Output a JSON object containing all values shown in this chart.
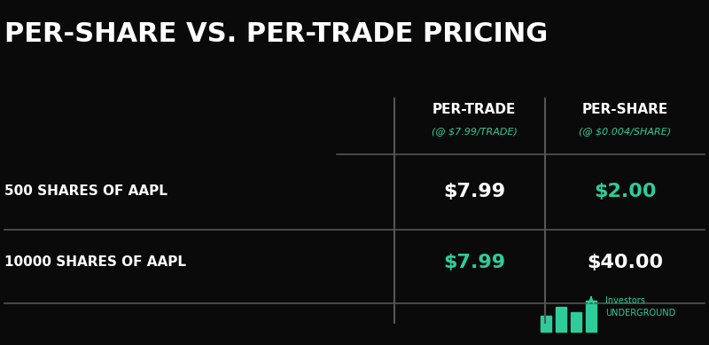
{
  "title": "PER-SHARE VS. PER-TRADE PRICING",
  "background_color": "#0a0a0a",
  "white_color": "#ffffff",
  "green_color": "#2ecc9a",
  "gray_line_color": "#555555",
  "header_col1": "PER-TRADE",
  "header_col1_sub": "(@ $7.99/TRADE)",
  "header_col2": "PER-SHARE",
  "header_col2_sub": "(@ $0.004/SHARE)",
  "rows": [
    {
      "label": "500 SHARES OF AAPL",
      "col1": "$7.99",
      "col1_green": false,
      "col2": "$2.00",
      "col2_green": true
    },
    {
      "label": "10000 SHARES OF AAPL",
      "col1": "$7.99",
      "col1_green": true,
      "col2": "$40.00",
      "col2_green": false
    }
  ],
  "logo_text": "Investors\nUNDERGROUND",
  "figsize": [
    8.0,
    3.89
  ],
  "dpi": 100
}
